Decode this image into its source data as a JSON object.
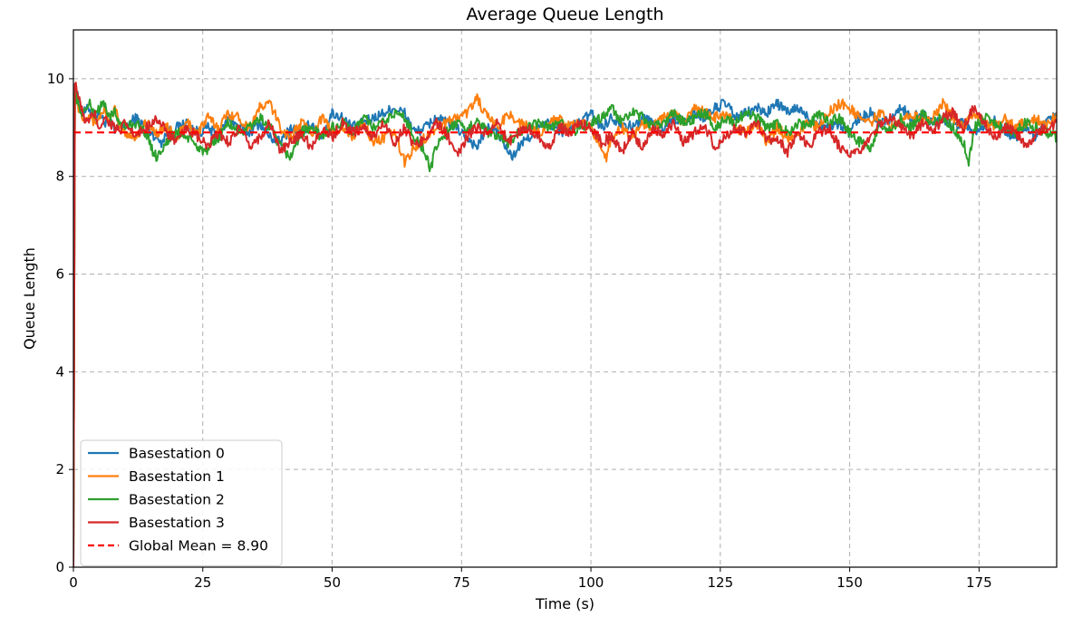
{
  "chart_data": {
    "type": "line",
    "title": "Average Queue Length",
    "xlabel": "Time (s)",
    "ylabel": "Queue Length",
    "xlim": [
      0,
      190
    ],
    "ylim": [
      0,
      11
    ],
    "xticks": [
      0,
      25,
      50,
      75,
      100,
      125,
      150,
      175
    ],
    "yticks": [
      0,
      2,
      4,
      6,
      8,
      10
    ],
    "grid": true,
    "legend_position": "lower-left",
    "series": [
      {
        "name": "Basestation 0",
        "color": "#1f77b4",
        "x": [
          0,
          0.3,
          1,
          2,
          3,
          4,
          5,
          6,
          7,
          8,
          9,
          10,
          12,
          14,
          16,
          17,
          18,
          20,
          22,
          24,
          26,
          28,
          30,
          32,
          34,
          36,
          38,
          40,
          42,
          44,
          46,
          48,
          50,
          52,
          54,
          56,
          58,
          60,
          62,
          64,
          66,
          68,
          70,
          72,
          74,
          76,
          78,
          80,
          82,
          84,
          85,
          86,
          88,
          90,
          92,
          94,
          96,
          98,
          100,
          102,
          104,
          106,
          108,
          110,
          112,
          114,
          116,
          118,
          120,
          122,
          124,
          126,
          128,
          130,
          132,
          134,
          136,
          138,
          140,
          142,
          144,
          146,
          148,
          150,
          152,
          154,
          156,
          158,
          160,
          162,
          164,
          166,
          168,
          170,
          172,
          174,
          176,
          178,
          180,
          182,
          184,
          186,
          188,
          190
        ],
        "values": [
          0,
          10.0,
          9.5,
          9.3,
          9.4,
          9.2,
          9.3,
          9.1,
          9.2,
          8.9,
          9.1,
          9.0,
          9.2,
          9.0,
          8.8,
          8.7,
          8.9,
          9.0,
          9.1,
          8.9,
          9.0,
          8.8,
          9.2,
          9.0,
          8.9,
          9.1,
          8.8,
          8.7,
          9.0,
          8.9,
          9.1,
          8.8,
          9.3,
          9.2,
          9.0,
          9.1,
          9.2,
          9.3,
          9.4,
          9.3,
          8.9,
          9.0,
          9.2,
          9.1,
          9.0,
          8.8,
          8.6,
          9.0,
          8.9,
          8.5,
          8.4,
          8.6,
          8.8,
          9.0,
          9.1,
          8.9,
          9.0,
          9.1,
          9.3,
          9.0,
          9.2,
          9.1,
          9.0,
          9.2,
          9.1,
          9.0,
          9.2,
          9.1,
          9.3,
          9.2,
          9.4,
          9.5,
          9.2,
          9.3,
          9.4,
          9.3,
          9.5,
          9.3,
          9.4,
          9.2,
          9.1,
          9.0,
          9.1,
          8.9,
          9.2,
          9.3,
          9.1,
          9.2,
          9.4,
          9.2,
          9.3,
          9.1,
          9.2,
          9.0,
          9.1,
          8.9,
          9.0,
          9.2,
          8.9,
          8.8,
          9.0,
          8.8,
          9.1,
          9.3
        ]
      },
      {
        "name": "Basestation 1",
        "color": "#ff7f0e",
        "x": [
          0,
          0.3,
          1,
          2,
          3,
          4,
          5,
          6,
          7,
          8,
          9,
          10,
          12,
          14,
          16,
          18,
          20,
          22,
          24,
          26,
          28,
          30,
          32,
          34,
          36,
          38,
          40,
          42,
          44,
          46,
          48,
          50,
          52,
          54,
          56,
          58,
          60,
          62,
          64,
          66,
          68,
          70,
          72,
          74,
          76,
          78,
          80,
          82,
          84,
          86,
          88,
          90,
          92,
          94,
          96,
          98,
          100,
          102,
          103,
          104,
          106,
          108,
          110,
          112,
          114,
          116,
          118,
          120,
          122,
          124,
          126,
          128,
          130,
          132,
          134,
          136,
          138,
          140,
          142,
          144,
          146,
          148,
          150,
          152,
          154,
          156,
          158,
          160,
          162,
          164,
          166,
          168,
          170,
          172,
          174,
          176,
          178,
          180,
          182,
          184,
          186,
          188,
          190
        ],
        "values": [
          0,
          9.9,
          9.4,
          9.2,
          9.3,
          9.1,
          9.2,
          9.4,
          9.1,
          9.4,
          9.0,
          8.9,
          8.8,
          9.1,
          8.9,
          9.0,
          8.8,
          9.1,
          8.9,
          9.2,
          9.0,
          9.3,
          9.2,
          9.0,
          9.4,
          9.5,
          9.0,
          8.8,
          9.1,
          8.9,
          9.2,
          8.9,
          9.0,
          8.8,
          9.1,
          8.7,
          8.8,
          8.9,
          8.3,
          8.6,
          8.8,
          9.0,
          9.1,
          9.2,
          9.3,
          9.6,
          9.2,
          9.0,
          9.3,
          9.1,
          9.0,
          8.9,
          9.1,
          9.2,
          9.0,
          9.1,
          9.0,
          8.6,
          8.4,
          8.8,
          9.0,
          8.8,
          9.1,
          9.0,
          9.2,
          9.3,
          9.1,
          9.4,
          9.3,
          9.2,
          9.3,
          9.0,
          8.9,
          9.1,
          8.7,
          9.0,
          8.8,
          8.9,
          9.1,
          9.0,
          9.3,
          9.5,
          9.4,
          9.2,
          9.1,
          9.3,
          9.0,
          9.2,
          9.3,
          9.1,
          9.2,
          9.5,
          9.2,
          9.0,
          9.3,
          9.1,
          9.0,
          9.2,
          9.0,
          9.1,
          9.2,
          9.0,
          9.3
        ]
      },
      {
        "name": "Basestation 2",
        "color": "#2ca02c",
        "x": [
          0,
          0.3,
          1,
          2,
          3,
          4,
          5,
          6,
          7,
          8,
          9,
          10,
          12,
          14,
          15,
          16,
          18,
          20,
          22,
          24,
          26,
          28,
          30,
          32,
          34,
          36,
          38,
          40,
          42,
          44,
          46,
          48,
          50,
          52,
          54,
          56,
          58,
          60,
          62,
          64,
          66,
          68,
          69,
          70,
          72,
          74,
          76,
          78,
          80,
          82,
          84,
          86,
          88,
          90,
          92,
          94,
          96,
          98,
          100,
          102,
          104,
          106,
          108,
          110,
          112,
          114,
          116,
          118,
          120,
          122,
          124,
          126,
          128,
          130,
          132,
          134,
          136,
          138,
          140,
          142,
          144,
          146,
          148,
          150,
          152,
          154,
          156,
          158,
          160,
          162,
          164,
          166,
          168,
          170,
          172,
          173,
          174,
          176,
          178,
          180,
          182,
          184,
          186,
          188,
          190
        ],
        "values": [
          0,
          9.8,
          9.4,
          9.3,
          9.5,
          9.3,
          9.4,
          9.5,
          9.2,
          9.3,
          9.1,
          9.0,
          9.1,
          8.9,
          8.6,
          8.4,
          8.7,
          8.9,
          8.8,
          8.6,
          8.5,
          8.8,
          9.1,
          8.9,
          9.0,
          9.2,
          9.0,
          8.6,
          8.4,
          8.9,
          9.0,
          8.8,
          9.0,
          9.1,
          8.9,
          9.2,
          9.0,
          9.1,
          9.3,
          9.2,
          8.8,
          8.5,
          8.1,
          8.6,
          8.9,
          9.1,
          8.9,
          9.2,
          8.9,
          8.8,
          8.7,
          8.9,
          9.0,
          9.1,
          9.0,
          9.1,
          8.9,
          9.0,
          9.1,
          9.2,
          9.4,
          9.1,
          9.3,
          9.2,
          9.0,
          9.1,
          9.3,
          9.1,
          9.2,
          9.3,
          9.0,
          9.2,
          9.1,
          9.3,
          9.2,
          9.0,
          9.1,
          8.9,
          9.1,
          9.0,
          9.3,
          9.1,
          9.2,
          8.9,
          8.7,
          8.6,
          9.1,
          8.9,
          9.2,
          9.0,
          9.3,
          9.1,
          9.2,
          9.0,
          8.7,
          8.3,
          9.0,
          9.2,
          9.1,
          9.0,
          8.9,
          9.1,
          9.0,
          8.9,
          8.8
        ]
      },
      {
        "name": "Basestation 3",
        "color": "#d62728",
        "x": [
          0,
          0.3,
          1,
          2,
          3,
          4,
          5,
          6,
          7,
          8,
          9,
          10,
          12,
          14,
          16,
          18,
          20,
          22,
          24,
          26,
          28,
          30,
          32,
          34,
          36,
          38,
          40,
          42,
          44,
          46,
          48,
          50,
          52,
          54,
          56,
          58,
          60,
          62,
          64,
          66,
          68,
          70,
          72,
          74,
          76,
          78,
          80,
          82,
          84,
          86,
          88,
          90,
          92,
          94,
          96,
          98,
          100,
          102,
          104,
          106,
          108,
          110,
          112,
          114,
          116,
          118,
          120,
          122,
          124,
          126,
          128,
          130,
          132,
          134,
          136,
          138,
          140,
          142,
          144,
          146,
          148,
          150,
          152,
          154,
          156,
          158,
          160,
          162,
          164,
          166,
          168,
          170,
          172,
          174,
          176,
          178,
          180,
          182,
          184,
          186,
          188,
          190
        ],
        "values": [
          0,
          10.0,
          9.6,
          9.2,
          9.1,
          9.3,
          9.0,
          9.2,
          9.1,
          9.0,
          8.9,
          9.1,
          8.8,
          9.0,
          9.2,
          8.9,
          8.7,
          9.0,
          8.8,
          8.6,
          8.9,
          8.7,
          9.0,
          8.6,
          8.8,
          9.1,
          8.5,
          8.7,
          8.9,
          8.6,
          9.0,
          8.8,
          9.1,
          8.9,
          9.0,
          8.8,
          9.1,
          8.7,
          9.0,
          8.6,
          8.8,
          9.1,
          8.9,
          8.4,
          8.8,
          9.0,
          8.9,
          9.1,
          8.7,
          8.9,
          9.0,
          8.8,
          8.6,
          9.0,
          8.9,
          9.1,
          9.0,
          8.7,
          8.8,
          8.5,
          8.9,
          8.6,
          9.0,
          8.8,
          9.1,
          8.7,
          8.9,
          9.0,
          8.6,
          8.8,
          9.0,
          8.9,
          9.1,
          8.7,
          8.8,
          8.5,
          8.9,
          8.6,
          8.9,
          9.0,
          8.6,
          8.4,
          8.5,
          8.8,
          9.1,
          9.2,
          9.0,
          8.8,
          9.1,
          8.9,
          9.2,
          9.3,
          9.0,
          9.4,
          9.1,
          8.8,
          9.0,
          8.9,
          8.6,
          8.9,
          9.0,
          9.1
        ]
      },
      {
        "name": "Global Mean = 8.90",
        "color": "#ff0000",
        "style": "dashed",
        "x": [
          0,
          190
        ],
        "values": [
          8.9,
          8.9
        ]
      }
    ]
  }
}
